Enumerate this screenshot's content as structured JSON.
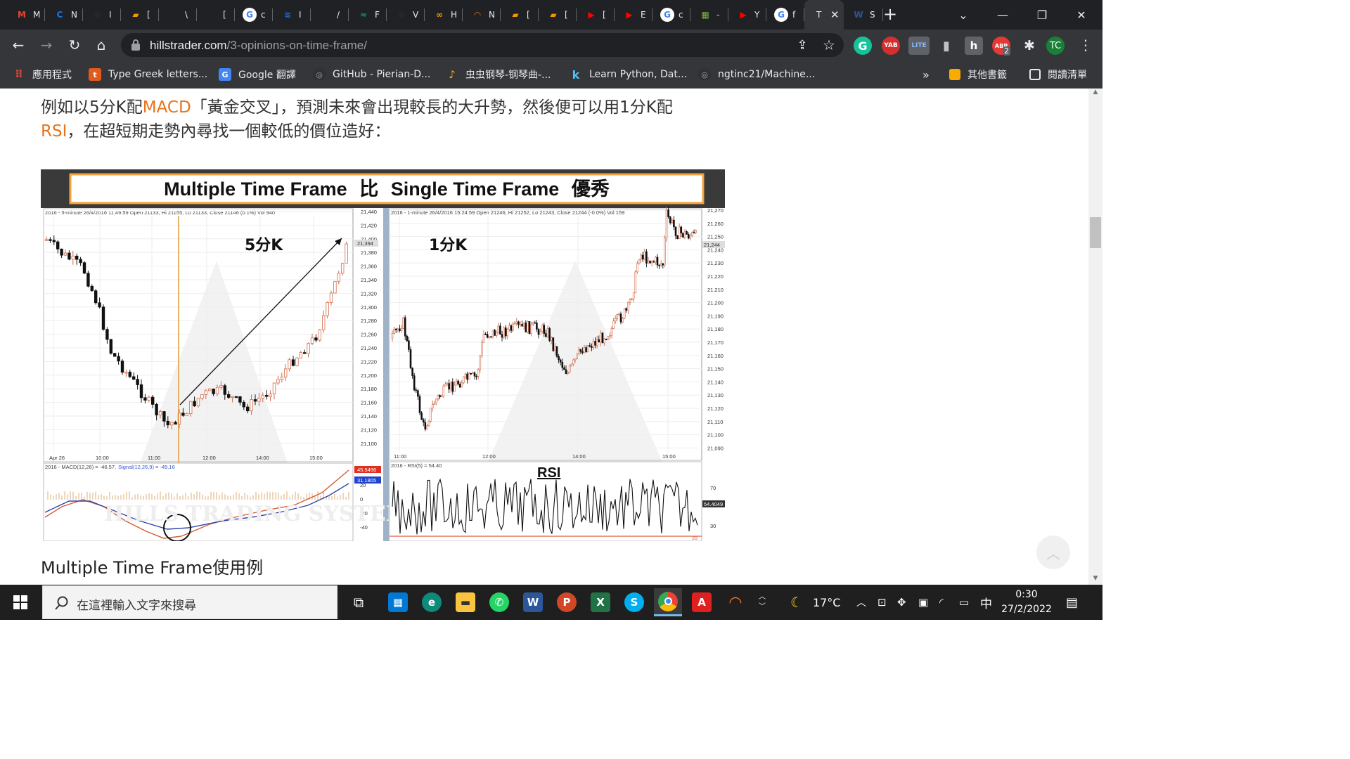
{
  "tabs": [
    {
      "icon": "gmail-icon",
      "label": "M",
      "color": "#ea4335",
      "glyph": "M"
    },
    {
      "icon": "chrome-c-icon",
      "label": "N",
      "color": "#1a73e8",
      "glyph": "C"
    },
    {
      "icon": "github-icon",
      "label": "I",
      "color": "#303030",
      "glyph": "◎"
    },
    {
      "icon": "book-icon",
      "label": "[",
      "color": "#f29900",
      "glyph": "▰"
    },
    {
      "icon": "k-icon",
      "label": "\\",
      "color": "#202124",
      "glyph": "k"
    },
    {
      "icon": "globe-icon",
      "label": "[",
      "color": "#202124",
      "glyph": "◉"
    },
    {
      "icon": "google-icon",
      "label": "c",
      "color": "#ffffff",
      "glyph": "G"
    },
    {
      "icon": "stripe-icon",
      "label": "I",
      "color": "#1a73e8",
      "glyph": "≋"
    },
    {
      "icon": "p-icon",
      "label": "/",
      "color": "#202124",
      "glyph": "℗"
    },
    {
      "icon": "green-icon",
      "label": "F",
      "color": "#0f9d58",
      "glyph": "≈"
    },
    {
      "icon": "github-icon-2",
      "label": "V",
      "color": "#303030",
      "glyph": "◎"
    },
    {
      "icon": "coursera-icon",
      "label": "H",
      "color": "#f29900",
      "glyph": "∞"
    },
    {
      "icon": "orange-ring-icon",
      "label": "N",
      "color": "#e8731a",
      "glyph": "◠"
    },
    {
      "icon": "book-icon-2",
      "label": "[",
      "color": "#f29900",
      "glyph": "▰"
    },
    {
      "icon": "book-icon-3",
      "label": "[",
      "color": "#f29900",
      "glyph": "▰"
    },
    {
      "icon": "youtube-icon",
      "label": "[",
      "color": "#ff0000",
      "glyph": "▶"
    },
    {
      "icon": "youtube-icon-2",
      "label": "E",
      "color": "#ff0000",
      "glyph": "▶"
    },
    {
      "icon": "google-icon-2",
      "label": "c",
      "color": "#ffffff",
      "glyph": "G"
    },
    {
      "icon": "map-icon",
      "label": "-",
      "color": "#7cb342",
      "glyph": "▦"
    },
    {
      "icon": "youtube-icon-3",
      "label": "Y",
      "color": "#ff0000",
      "glyph": "▶"
    },
    {
      "icon": "google-icon-3",
      "label": "f",
      "color": "#ffffff",
      "glyph": "G"
    },
    {
      "icon": "active-tab-icon",
      "label": "T",
      "color": "#35363a",
      "glyph": ""
    },
    {
      "icon": "word-icon",
      "label": "S",
      "color": "#2b579a",
      "glyph": "W"
    }
  ],
  "address": {
    "domain": "hillstrader.com",
    "path": "/3-opinions-on-time-frame/"
  },
  "bookmarks": [
    {
      "label": "應用程式",
      "icon": "apps-grid-icon"
    },
    {
      "label": "Type Greek letters...",
      "icon": "t-icon"
    },
    {
      "label": "Google 翻譯",
      "icon": "google-translate-icon"
    },
    {
      "label": "GitHub - Pierian-D...",
      "icon": "github-bm-icon"
    },
    {
      "label": "虫虫钢琴-钢琴曲-...",
      "icon": "piano-icon"
    },
    {
      "label": "Learn Python, Dat...",
      "icon": "k-bm-icon"
    },
    {
      "label": "ngtinc21/Machine...",
      "icon": "github-bm-icon-2"
    }
  ],
  "bookmarks_overflow": "»",
  "bookmarks_other": "其他書籤",
  "reading_list": "閱讀清單",
  "ext_labels": {
    "yab": "YAB",
    "lite": "LITE",
    "abp": "ABP",
    "abp_count": "2",
    "profile": "TC"
  },
  "article": {
    "line1_a": "例如以5分K配",
    "line1_hl": "MACD",
    "line1_b": "「黃金交叉」，預測未來會出現較長的大升勢，然後便可以用1分K配",
    "line2_hl": "RSI",
    "line2_b": "，在超短期走勢內尋找一個較低的價位造好："
  },
  "figure": {
    "title_a": "Multiple Time Frame",
    "title_cn1": "比",
    "title_b": "Single Time Frame",
    "title_cn2": "優秀",
    "left_header": "2016 - 5-minute 26/4/2016 11:49:59 Open 21133, Hi 21155, Lo 21133, Close 21146 (0.1%) Vol 940",
    "right_header": "2016 - 1-minute 26/4/2016 15:24:59 Open 21246, Hi 21252, Lo 21243, Close 21244 (-0.0%) Vol 159",
    "left_label": "5分K",
    "right_label": "1分K",
    "left_yticks": [
      "21,440",
      "21,420",
      "21,400",
      "21,380",
      "21,360",
      "21,340",
      "21,320",
      "21,300",
      "21,280",
      "21,260",
      "21,240",
      "21,220",
      "21,200",
      "21,180",
      "21,160",
      "21,140",
      "21,120",
      "21,100"
    ],
    "left_last": "21,394",
    "left_xticks": [
      "Apr 26",
      "10:00",
      "11:00",
      "12:00",
      "14:00",
      "15:00"
    ],
    "right_yticks": [
      "21,270",
      "21,260",
      "21,250",
      "21,240",
      "21,230",
      "21,220",
      "21,210",
      "21,200",
      "21,190",
      "21,180",
      "21,170",
      "21,160",
      "21,150",
      "21,140",
      "21,130",
      "21,120",
      "21,110",
      "21,100",
      "21,090"
    ],
    "right_last": "21,244",
    "right_xticks": [
      "11:00",
      "12:00",
      "14:00",
      "15:00"
    ],
    "macd_header": "2016 - MACD(12,26) = -46.57,",
    "macd_signal": "Signal(12,26,9) = -49.16",
    "macd_ticks": [
      "20",
      "0",
      "-20",
      "-40"
    ],
    "macd_tag1": "45.5496",
    "macd_tag2": "31.1805",
    "rsi_header": "2016 - RSI(5) = 54.40",
    "rsi_label": "RSI",
    "rsi_ticks": [
      "70",
      "30"
    ],
    "rsi_tag": "54.4049",
    "rsi_bottom": "20",
    "watermark": "HILLS TRADING SYSTEMS LIMITED"
  },
  "caption": "Multiple Time Frame使用例",
  "taskbar": {
    "search_placeholder": "在這裡輸入文字來搜尋",
    "temp": "17°C",
    "ime": "中",
    "time": "0:30",
    "date": "27/2/2022"
  }
}
